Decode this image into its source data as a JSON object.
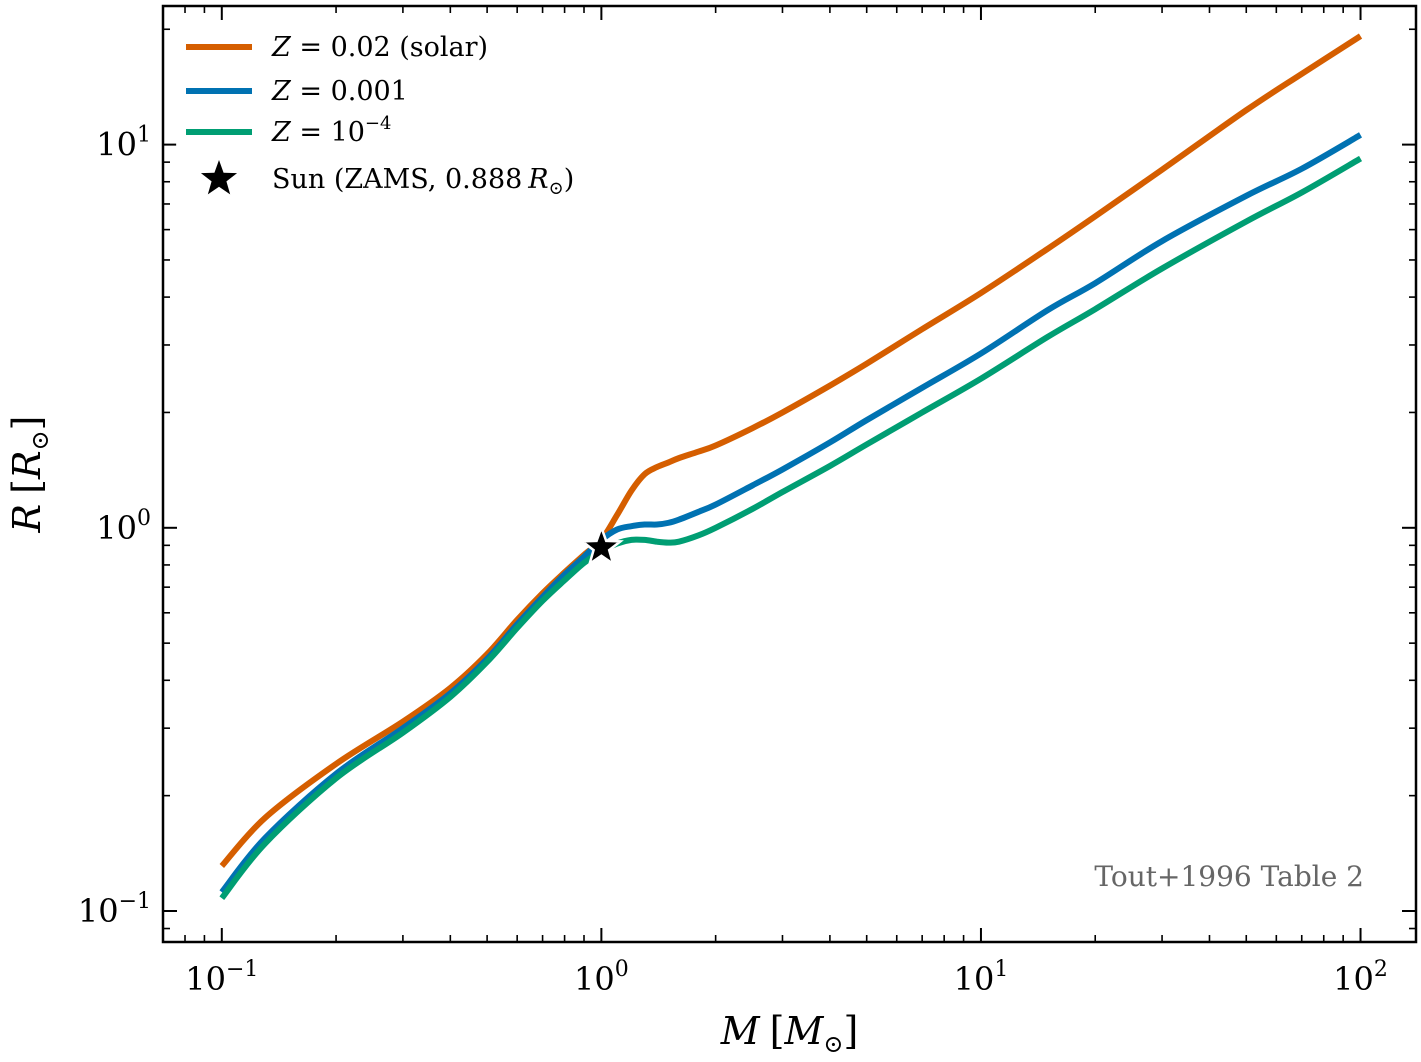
{
  "chart_data": {
    "type": "line",
    "title": "",
    "x_scale": "log",
    "y_scale": "log",
    "xlim": [
      0.07,
      140
    ],
    "ylim": [
      0.083,
      23
    ],
    "xlabel": {
      "main": "M",
      "bracket_open": "[",
      "symbol": "M",
      "sub": "⊙",
      "bracket_close": "]"
    },
    "ylabel": {
      "main": "R",
      "bracket_open": "[",
      "symbol": "R",
      "sub": "⊙",
      "bracket_close": "]"
    },
    "x_ticks": [
      {
        "value": 0.1,
        "base": "10",
        "exp": "−1"
      },
      {
        "value": 1,
        "base": "10",
        "exp": "0"
      },
      {
        "value": 10,
        "base": "10",
        "exp": "1"
      },
      {
        "value": 100,
        "base": "10",
        "exp": "2"
      }
    ],
    "y_ticks": [
      {
        "value": 0.1,
        "base": "10",
        "exp": "−1"
      },
      {
        "value": 1,
        "base": "10",
        "exp": "0"
      },
      {
        "value": 10,
        "base": "10",
        "exp": "1"
      }
    ],
    "grid": false,
    "legend_position": "top-left",
    "x": [
      0.1,
      0.13,
      0.2,
      0.3,
      0.4,
      0.5,
      0.6,
      0.7,
      0.8,
      0.9,
      1.0,
      1.1,
      1.2,
      1.3,
      1.4,
      1.5,
      1.6,
      1.8,
      2.0,
      2.5,
      3,
      4,
      5,
      7,
      10,
      15,
      20,
      30,
      50,
      70,
      100
    ],
    "series": [
      {
        "name": "Z = 0.02 (solar)",
        "label": {
          "var": "Z",
          "op": " = ",
          "value": "0.02",
          "suffix": " (solar)"
        },
        "color": "#D55E00",
        "values": [
          0.131,
          0.175,
          0.242,
          0.312,
          0.382,
          0.468,
          0.575,
          0.675,
          0.765,
          0.85,
          0.93,
          1.08,
          1.25,
          1.38,
          1.44,
          1.48,
          1.52,
          1.58,
          1.64,
          1.82,
          2.0,
          2.35,
          2.68,
          3.3,
          4.1,
          5.35,
          6.5,
          8.6,
          12.3,
          15.3,
          19.2
        ]
      },
      {
        "name": "Z = 0.001",
        "label": {
          "var": "Z",
          "op": " = ",
          "value": "0.001"
        },
        "color": "#0072B2",
        "values": [
          0.112,
          0.155,
          0.228,
          0.3,
          0.37,
          0.455,
          0.56,
          0.66,
          0.755,
          0.84,
          0.93,
          0.99,
          1.01,
          1.02,
          1.02,
          1.03,
          1.05,
          1.1,
          1.15,
          1.29,
          1.42,
          1.67,
          1.91,
          2.32,
          2.85,
          3.7,
          4.35,
          5.6,
          7.35,
          8.65,
          10.6
        ]
      },
      {
        "name": "Z = 10^-4",
        "label": {
          "var": "Z",
          "op": " = ",
          "value": "10",
          "exp": "−4"
        },
        "color": "#009E73",
        "values": [
          0.108,
          0.15,
          0.222,
          0.292,
          0.362,
          0.447,
          0.548,
          0.645,
          0.73,
          0.81,
          0.87,
          0.91,
          0.93,
          0.93,
          0.92,
          0.915,
          0.92,
          0.955,
          1.0,
          1.12,
          1.24,
          1.45,
          1.65,
          2.0,
          2.45,
          3.15,
          3.72,
          4.75,
          6.3,
          7.5,
          9.2
        ]
      }
    ],
    "marker": {
      "name": "Sun (ZAMS, 0.888 R⊙)",
      "label": {
        "prefix": "Sun (ZAMS, ",
        "value": "0.888",
        "unit": "R",
        "sub": "⊙",
        "suffix": ")"
      },
      "x": 1.0,
      "y": 0.888,
      "shape": "star",
      "color": "#000000"
    },
    "annotation": {
      "text": "Tout+1996 Table 2",
      "position": "bottom-right",
      "color": "#666666"
    }
  }
}
